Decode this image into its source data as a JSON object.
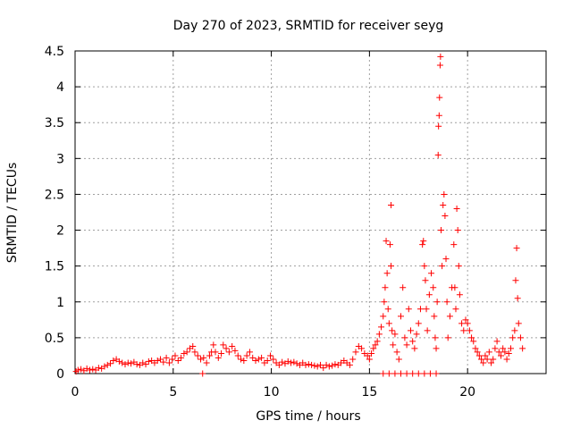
{
  "chart_data": {
    "type": "scatter",
    "title": "Day 270 of 2023, SRMTID for receiver seyg",
    "xlabel": "GPS time / hours",
    "ylabel": "SRMTID / TECUs",
    "xlim": [
      0,
      24
    ],
    "ylim": [
      0,
      4.5
    ],
    "xticks": [
      0,
      5,
      10,
      15,
      20
    ],
    "yticks": [
      0,
      0.5,
      1,
      1.5,
      2,
      2.5,
      3,
      3.5,
      4,
      4.5
    ],
    "grid": true,
    "marker": "+",
    "marker_color": "#ff0000",
    "series": [
      {
        "name": "seyg",
        "points": [
          [
            0.05,
            0.03
          ],
          [
            0.15,
            0.05
          ],
          [
            0.3,
            0.06
          ],
          [
            0.45,
            0.04
          ],
          [
            0.6,
            0.07
          ],
          [
            0.75,
            0.05
          ],
          [
            0.9,
            0.06
          ],
          [
            1.05,
            0.05
          ],
          [
            1.2,
            0.08
          ],
          [
            1.35,
            0.07
          ],
          [
            1.5,
            0.1
          ],
          [
            1.65,
            0.12
          ],
          [
            1.8,
            0.14
          ],
          [
            1.95,
            0.18
          ],
          [
            2.1,
            0.2
          ],
          [
            2.25,
            0.17
          ],
          [
            2.4,
            0.15
          ],
          [
            2.55,
            0.13
          ],
          [
            2.7,
            0.15
          ],
          [
            2.85,
            0.14
          ],
          [
            3.0,
            0.16
          ],
          [
            3.15,
            0.13
          ],
          [
            3.3,
            0.12
          ],
          [
            3.45,
            0.15
          ],
          [
            3.6,
            0.13
          ],
          [
            3.75,
            0.17
          ],
          [
            3.9,
            0.18
          ],
          [
            4.05,
            0.15
          ],
          [
            4.2,
            0.18
          ],
          [
            4.35,
            0.2
          ],
          [
            4.5,
            0.16
          ],
          [
            4.65,
            0.22
          ],
          [
            4.8,
            0.15
          ],
          [
            4.95,
            0.2
          ],
          [
            5.1,
            0.25
          ],
          [
            5.25,
            0.18
          ],
          [
            5.4,
            0.22
          ],
          [
            5.55,
            0.28
          ],
          [
            5.7,
            0.3
          ],
          [
            5.85,
            0.35
          ],
          [
            6.0,
            0.38
          ],
          [
            6.1,
            0.3
          ],
          [
            6.25,
            0.25
          ],
          [
            6.4,
            0.2
          ],
          [
            6.55,
            0.22
          ],
          [
            6.7,
            0.15
          ],
          [
            6.85,
            0.25
          ],
          [
            6.95,
            0.3
          ],
          [
            7.05,
            0.4
          ],
          [
            7.15,
            0.3
          ],
          [
            7.3,
            0.22
          ],
          [
            7.45,
            0.28
          ],
          [
            7.55,
            0.4
          ],
          [
            7.7,
            0.35
          ],
          [
            7.85,
            0.3
          ],
          [
            8.0,
            0.38
          ],
          [
            8.15,
            0.32
          ],
          [
            8.3,
            0.25
          ],
          [
            8.45,
            0.2
          ],
          [
            8.6,
            0.18
          ],
          [
            8.75,
            0.25
          ],
          [
            8.9,
            0.3
          ],
          [
            9.05,
            0.22
          ],
          [
            9.2,
            0.18
          ],
          [
            9.35,
            0.2
          ],
          [
            9.5,
            0.22
          ],
          [
            9.65,
            0.15
          ],
          [
            9.8,
            0.18
          ],
          [
            9.95,
            0.25
          ],
          [
            10.1,
            0.2
          ],
          [
            10.25,
            0.15
          ],
          [
            10.4,
            0.12
          ],
          [
            10.55,
            0.16
          ],
          [
            10.7,
            0.14
          ],
          [
            10.85,
            0.17
          ],
          [
            11.0,
            0.15
          ],
          [
            11.15,
            0.16
          ],
          [
            11.3,
            0.14
          ],
          [
            11.45,
            0.12
          ],
          [
            11.6,
            0.15
          ],
          [
            11.75,
            0.12
          ],
          [
            11.9,
            0.13
          ],
          [
            12.05,
            0.12
          ],
          [
            12.2,
            0.11
          ],
          [
            12.35,
            0.1
          ],
          [
            12.5,
            0.12
          ],
          [
            12.65,
            0.08
          ],
          [
            12.8,
            0.12
          ],
          [
            12.95,
            0.1
          ],
          [
            13.1,
            0.11
          ],
          [
            13.25,
            0.13
          ],
          [
            13.4,
            0.12
          ],
          [
            13.55,
            0.15
          ],
          [
            13.7,
            0.18
          ],
          [
            13.85,
            0.15
          ],
          [
            14.0,
            0.12
          ],
          [
            14.15,
            0.2
          ],
          [
            14.3,
            0.3
          ],
          [
            14.45,
            0.38
          ],
          [
            14.6,
            0.35
          ],
          [
            14.75,
            0.28
          ],
          [
            14.9,
            0.25
          ],
          [
            15.0,
            0.2
          ],
          [
            15.1,
            0.28
          ],
          [
            15.2,
            0.35
          ],
          [
            15.3,
            0.4
          ],
          [
            15.4,
            0.45
          ],
          [
            15.5,
            0.55
          ],
          [
            15.6,
            0.65
          ],
          [
            15.7,
            0.8
          ],
          [
            15.75,
            1.0
          ],
          [
            15.8,
            1.2
          ],
          [
            15.85,
            1.85
          ],
          [
            15.9,
            1.4
          ],
          [
            15.95,
            0.9
          ],
          [
            16.0,
            0.7
          ],
          [
            16.05,
            1.8
          ],
          [
            16.1,
            1.5
          ],
          [
            16.1,
            2.35
          ],
          [
            16.15,
            0.6
          ],
          [
            16.2,
            0.4
          ],
          [
            16.3,
            0.55
          ],
          [
            16.4,
            0.3
          ],
          [
            16.5,
            0.2
          ],
          [
            16.6,
            0.8
          ],
          [
            16.7,
            1.2
          ],
          [
            16.8,
            0.5
          ],
          [
            16.9,
            0.4
          ],
          [
            17.0,
            0.9
          ],
          [
            17.1,
            0.6
          ],
          [
            17.2,
            0.45
          ],
          [
            17.3,
            0.35
          ],
          [
            17.4,
            0.55
          ],
          [
            17.5,
            0.7
          ],
          [
            17.6,
            0.9
          ],
          [
            17.7,
            1.8
          ],
          [
            17.75,
            1.85
          ],
          [
            17.8,
            1.5
          ],
          [
            17.85,
            1.3
          ],
          [
            17.9,
            0.9
          ],
          [
            17.95,
            0.6
          ],
          [
            18.05,
            1.1
          ],
          [
            18.15,
            1.4
          ],
          [
            18.25,
            1.2
          ],
          [
            18.3,
            0.8
          ],
          [
            18.35,
            0.5
          ],
          [
            18.4,
            0.35
          ],
          [
            18.45,
            1.0
          ],
          [
            18.5,
            3.05
          ],
          [
            18.52,
            3.45
          ],
          [
            18.55,
            3.6
          ],
          [
            18.57,
            3.85
          ],
          [
            18.6,
            4.3
          ],
          [
            18.62,
            4.42
          ],
          [
            18.65,
            2.0
          ],
          [
            18.7,
            1.5
          ],
          [
            18.75,
            2.35
          ],
          [
            18.8,
            2.5
          ],
          [
            18.85,
            2.2
          ],
          [
            18.9,
            1.6
          ],
          [
            18.95,
            1.0
          ],
          [
            19.0,
            0.5
          ],
          [
            19.1,
            0.8
          ],
          [
            19.2,
            1.2
          ],
          [
            19.3,
            1.8
          ],
          [
            19.35,
            1.2
          ],
          [
            19.4,
            0.9
          ],
          [
            19.45,
            2.3
          ],
          [
            19.5,
            2.0
          ],
          [
            19.55,
            1.5
          ],
          [
            19.6,
            1.1
          ],
          [
            19.7,
            0.7
          ],
          [
            19.8,
            0.6
          ],
          [
            19.9,
            0.75
          ],
          [
            20.0,
            0.7
          ],
          [
            20.1,
            0.6
          ],
          [
            20.2,
            0.5
          ],
          [
            20.3,
            0.45
          ],
          [
            20.4,
            0.35
          ],
          [
            20.5,
            0.3
          ],
          [
            20.6,
            0.25
          ],
          [
            20.7,
            0.2
          ],
          [
            20.8,
            0.15
          ],
          [
            20.9,
            0.25
          ],
          [
            21.0,
            0.2
          ],
          [
            21.1,
            0.3
          ],
          [
            21.2,
            0.15
          ],
          [
            21.3,
            0.2
          ],
          [
            21.4,
            0.35
          ],
          [
            21.5,
            0.45
          ],
          [
            21.6,
            0.3
          ],
          [
            21.7,
            0.25
          ],
          [
            21.8,
            0.35
          ],
          [
            21.9,
            0.3
          ],
          [
            22.0,
            0.2
          ],
          [
            22.1,
            0.28
          ],
          [
            22.2,
            0.35
          ],
          [
            22.3,
            0.5
          ],
          [
            22.4,
            0.6
          ],
          [
            22.45,
            1.3
          ],
          [
            22.5,
            1.75
          ],
          [
            22.55,
            1.05
          ],
          [
            22.6,
            0.7
          ],
          [
            22.7,
            0.5
          ],
          [
            22.8,
            0.35
          ],
          [
            15.7,
            0.0
          ],
          [
            16.0,
            0.0
          ],
          [
            16.3,
            0.0
          ],
          [
            16.6,
            0.0
          ],
          [
            16.9,
            0.0
          ],
          [
            17.2,
            0.0
          ],
          [
            17.5,
            0.0
          ],
          [
            17.8,
            0.0
          ],
          [
            18.1,
            0.0
          ],
          [
            18.4,
            0.0
          ],
          [
            6.5,
            0.0
          ]
        ]
      }
    ]
  }
}
